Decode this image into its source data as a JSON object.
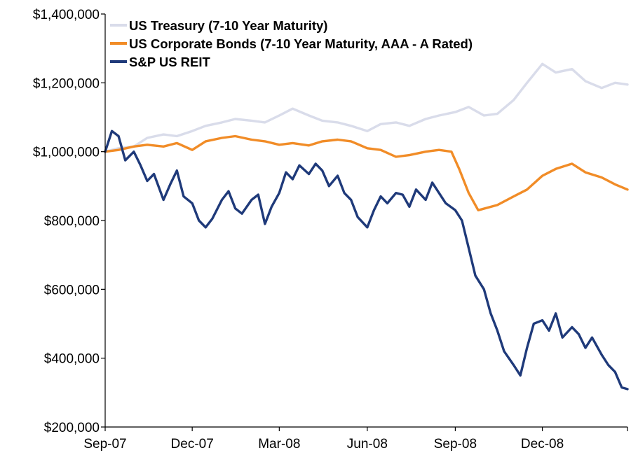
{
  "chart_data": {
    "type": "line",
    "title": "",
    "xlabel": "",
    "ylabel": "",
    "ylim": [
      200000,
      1400000
    ],
    "xlim": [
      "2007-09-01",
      "2009-02-28"
    ],
    "y_ticks": [
      200000,
      400000,
      600000,
      800000,
      1000000,
      1200000,
      1400000
    ],
    "y_tick_labels": [
      "$200,000",
      "$400,000",
      "$600,000",
      "$800,000",
      "$1,000,000",
      "$1,200,000",
      "$1,400,000"
    ],
    "x_ticks": [
      "2007-09-01",
      "2007-12-01",
      "2008-03-01",
      "2008-06-01",
      "2008-09-01",
      "2008-12-01"
    ],
    "x_tick_labels": [
      "Sep-07",
      "Dec-07",
      "Mar-08",
      "Jun-08",
      "Sep-08",
      "Dec-08"
    ],
    "grid": false,
    "legend_position": "top-left",
    "series": [
      {
        "name": "US Treasury (7-10 Year Maturity)",
        "color": "#d9dcea",
        "points": [
          [
            "2007-09-01",
            1000000
          ],
          [
            "2007-09-15",
            1010000
          ],
          [
            "2007-10-01",
            1015000
          ],
          [
            "2007-10-15",
            1040000
          ],
          [
            "2007-11-01",
            1050000
          ],
          [
            "2007-11-15",
            1045000
          ],
          [
            "2007-12-01",
            1060000
          ],
          [
            "2007-12-15",
            1075000
          ],
          [
            "2008-01-01",
            1085000
          ],
          [
            "2008-01-15",
            1095000
          ],
          [
            "2008-02-01",
            1090000
          ],
          [
            "2008-02-15",
            1085000
          ],
          [
            "2008-03-01",
            1105000
          ],
          [
            "2008-03-15",
            1125000
          ],
          [
            "2008-04-01",
            1105000
          ],
          [
            "2008-04-15",
            1090000
          ],
          [
            "2008-05-01",
            1085000
          ],
          [
            "2008-05-15",
            1075000
          ],
          [
            "2008-06-01",
            1060000
          ],
          [
            "2008-06-15",
            1080000
          ],
          [
            "2008-07-01",
            1085000
          ],
          [
            "2008-07-15",
            1075000
          ],
          [
            "2008-08-01",
            1095000
          ],
          [
            "2008-08-15",
            1105000
          ],
          [
            "2008-09-01",
            1115000
          ],
          [
            "2008-09-15",
            1130000
          ],
          [
            "2008-10-01",
            1105000
          ],
          [
            "2008-10-15",
            1110000
          ],
          [
            "2008-11-01",
            1150000
          ],
          [
            "2008-11-15",
            1200000
          ],
          [
            "2008-12-01",
            1255000
          ],
          [
            "2008-12-15",
            1230000
          ],
          [
            "2009-01-01",
            1240000
          ],
          [
            "2009-01-15",
            1205000
          ],
          [
            "2009-02-01",
            1185000
          ],
          [
            "2009-02-15",
            1200000
          ],
          [
            "2009-02-28",
            1195000
          ]
        ]
      },
      {
        "name": "US Corporate Bonds (7-10 Year Maturity, AAA - A Rated)",
        "color": "#f18c27",
        "points": [
          [
            "2007-09-01",
            1000000
          ],
          [
            "2007-09-15",
            1005000
          ],
          [
            "2007-10-01",
            1015000
          ],
          [
            "2007-10-15",
            1020000
          ],
          [
            "2007-11-01",
            1015000
          ],
          [
            "2007-11-15",
            1025000
          ],
          [
            "2007-12-01",
            1005000
          ],
          [
            "2007-12-15",
            1030000
          ],
          [
            "2008-01-01",
            1040000
          ],
          [
            "2008-01-15",
            1045000
          ],
          [
            "2008-02-01",
            1035000
          ],
          [
            "2008-02-15",
            1030000
          ],
          [
            "2008-03-01",
            1020000
          ],
          [
            "2008-03-15",
            1025000
          ],
          [
            "2008-04-01",
            1018000
          ],
          [
            "2008-04-15",
            1030000
          ],
          [
            "2008-05-01",
            1035000
          ],
          [
            "2008-05-15",
            1030000
          ],
          [
            "2008-06-01",
            1010000
          ],
          [
            "2008-06-15",
            1005000
          ],
          [
            "2008-07-01",
            985000
          ],
          [
            "2008-07-15",
            990000
          ],
          [
            "2008-08-01",
            1000000
          ],
          [
            "2008-08-15",
            1005000
          ],
          [
            "2008-08-28",
            1000000
          ],
          [
            "2008-09-05",
            950000
          ],
          [
            "2008-09-15",
            880000
          ],
          [
            "2008-09-25",
            830000
          ],
          [
            "2008-10-15",
            845000
          ],
          [
            "2008-11-01",
            870000
          ],
          [
            "2008-11-15",
            890000
          ],
          [
            "2008-12-01",
            930000
          ],
          [
            "2008-12-15",
            950000
          ],
          [
            "2009-01-01",
            965000
          ],
          [
            "2009-01-15",
            940000
          ],
          [
            "2009-02-01",
            925000
          ],
          [
            "2009-02-15",
            905000
          ],
          [
            "2009-02-28",
            890000
          ]
        ]
      },
      {
        "name": "S&P US REIT",
        "color": "#1f3a7a",
        "points": [
          [
            "2007-09-01",
            1000000
          ],
          [
            "2007-09-08",
            1060000
          ],
          [
            "2007-09-15",
            1045000
          ],
          [
            "2007-09-22",
            975000
          ],
          [
            "2007-10-01",
            1000000
          ],
          [
            "2007-10-08",
            960000
          ],
          [
            "2007-10-15",
            915000
          ],
          [
            "2007-10-22",
            935000
          ],
          [
            "2007-11-01",
            860000
          ],
          [
            "2007-11-08",
            905000
          ],
          [
            "2007-11-15",
            945000
          ],
          [
            "2007-11-22",
            870000
          ],
          [
            "2007-12-01",
            850000
          ],
          [
            "2007-12-08",
            800000
          ],
          [
            "2007-12-15",
            780000
          ],
          [
            "2007-12-22",
            805000
          ],
          [
            "2008-01-01",
            860000
          ],
          [
            "2008-01-08",
            885000
          ],
          [
            "2008-01-15",
            835000
          ],
          [
            "2008-01-22",
            820000
          ],
          [
            "2008-02-01",
            860000
          ],
          [
            "2008-02-08",
            875000
          ],
          [
            "2008-02-15",
            790000
          ],
          [
            "2008-02-22",
            840000
          ],
          [
            "2008-03-01",
            880000
          ],
          [
            "2008-03-08",
            940000
          ],
          [
            "2008-03-15",
            920000
          ],
          [
            "2008-03-22",
            960000
          ],
          [
            "2008-04-01",
            935000
          ],
          [
            "2008-04-08",
            965000
          ],
          [
            "2008-04-15",
            945000
          ],
          [
            "2008-04-22",
            900000
          ],
          [
            "2008-05-01",
            930000
          ],
          [
            "2008-05-08",
            880000
          ],
          [
            "2008-05-15",
            860000
          ],
          [
            "2008-05-22",
            810000
          ],
          [
            "2008-06-01",
            780000
          ],
          [
            "2008-06-08",
            830000
          ],
          [
            "2008-06-15",
            870000
          ],
          [
            "2008-06-22",
            850000
          ],
          [
            "2008-07-01",
            880000
          ],
          [
            "2008-07-08",
            875000
          ],
          [
            "2008-07-15",
            840000
          ],
          [
            "2008-07-22",
            890000
          ],
          [
            "2008-08-01",
            860000
          ],
          [
            "2008-08-08",
            910000
          ],
          [
            "2008-08-15",
            880000
          ],
          [
            "2008-08-22",
            850000
          ],
          [
            "2008-09-01",
            830000
          ],
          [
            "2008-09-08",
            800000
          ],
          [
            "2008-09-15",
            720000
          ],
          [
            "2008-09-22",
            640000
          ],
          [
            "2008-10-01",
            600000
          ],
          [
            "2008-10-08",
            530000
          ],
          [
            "2008-10-15",
            480000
          ],
          [
            "2008-10-22",
            420000
          ],
          [
            "2008-11-01",
            380000
          ],
          [
            "2008-11-08",
            350000
          ],
          [
            "2008-11-15",
            430000
          ],
          [
            "2008-11-22",
            500000
          ],
          [
            "2008-12-01",
            510000
          ],
          [
            "2008-12-08",
            480000
          ],
          [
            "2008-12-15",
            530000
          ],
          [
            "2008-12-22",
            460000
          ],
          [
            "2009-01-01",
            490000
          ],
          [
            "2009-01-08",
            470000
          ],
          [
            "2009-01-15",
            430000
          ],
          [
            "2009-01-22",
            460000
          ],
          [
            "2009-02-01",
            410000
          ],
          [
            "2009-02-08",
            380000
          ],
          [
            "2009-02-15",
            360000
          ],
          [
            "2009-02-22",
            315000
          ],
          [
            "2009-02-28",
            310000
          ]
        ]
      }
    ]
  }
}
